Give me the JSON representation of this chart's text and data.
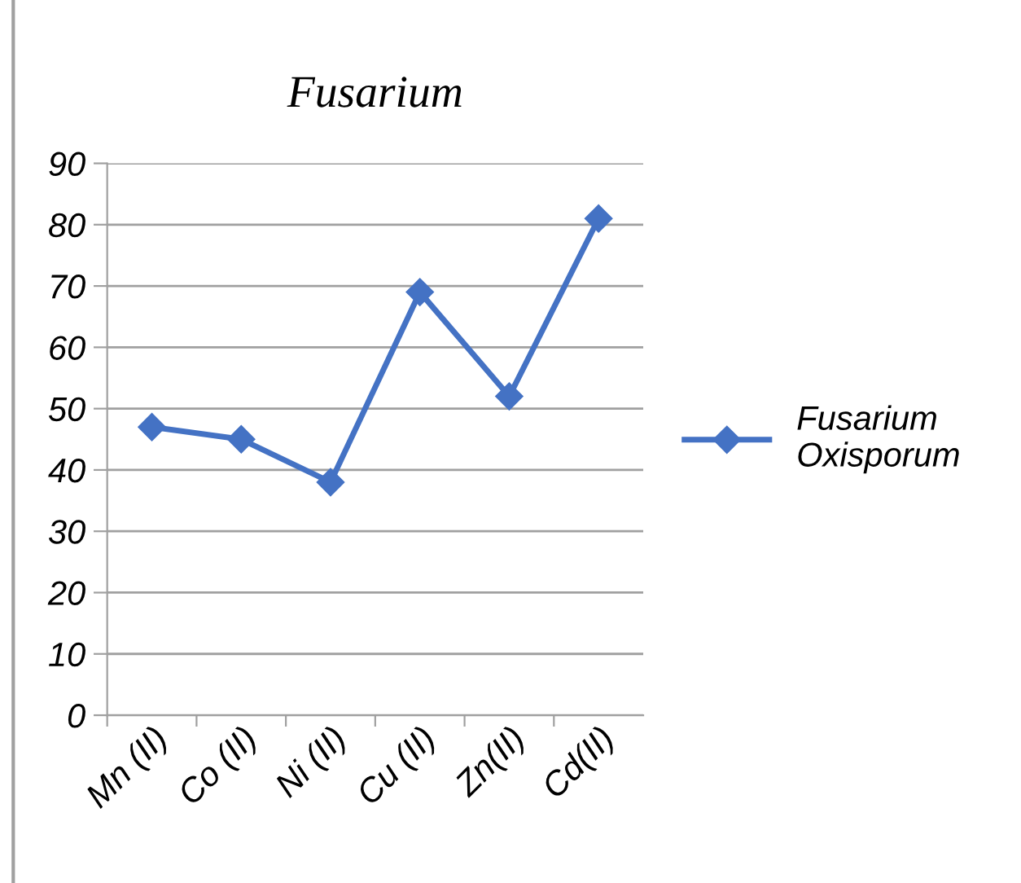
{
  "chart_data": {
    "type": "line",
    "title": "Fusarium",
    "categories": [
      "Mn (II)",
      "Co (II)",
      "Ni (II)",
      "Cu (II)",
      "Zn(II)",
      "Cd(II)"
    ],
    "series": [
      {
        "name": "Fusarium\nOxisporum",
        "color": "#4472c4",
        "values": [
          47,
          45,
          38,
          69,
          52,
          81
        ]
      }
    ],
    "ylim": [
      0,
      90
    ],
    "yticks": [
      0,
      10,
      20,
      30,
      40,
      50,
      60,
      70,
      80,
      90
    ],
    "grid": "y",
    "legend": "right",
    "marker": "diamond",
    "line_style": "solid"
  }
}
